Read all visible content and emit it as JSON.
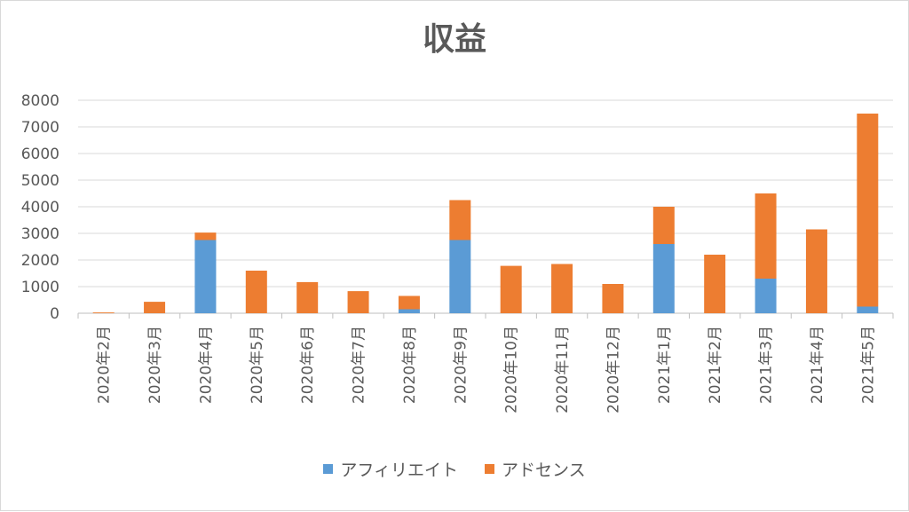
{
  "chart_data": {
    "type": "bar",
    "stacked": true,
    "title": "収益",
    "categories": [
      "2020年2月",
      "2020年3月",
      "2020年4月",
      "2020年5月",
      "2020年6月",
      "2020年7月",
      "2020年8月",
      "2020年9月",
      "2020年10月",
      "2020年11月",
      "2020年12月",
      "2021年1月",
      "2021年2月",
      "2021年3月",
      "2021年4月",
      "2021年5月"
    ],
    "series": [
      {
        "name": "アフィリエイト",
        "color": "#5b9bd5",
        "values": [
          0,
          0,
          2750,
          0,
          0,
          0,
          150,
          2750,
          0,
          0,
          0,
          2600,
          0,
          1300,
          0,
          250
        ]
      },
      {
        "name": "アドセンス",
        "color": "#ed7d31",
        "values": [
          30,
          430,
          280,
          1600,
          1170,
          830,
          500,
          1500,
          1780,
          1850,
          1100,
          1400,
          2200,
          3200,
          3150,
          7250
        ]
      }
    ],
    "ylim": [
      0,
      8000
    ],
    "yticks": [
      "0",
      "1000",
      "2000",
      "3000",
      "4000",
      "5000",
      "6000",
      "7000",
      "8000"
    ],
    "grid": true,
    "legend_position": "bottom"
  }
}
